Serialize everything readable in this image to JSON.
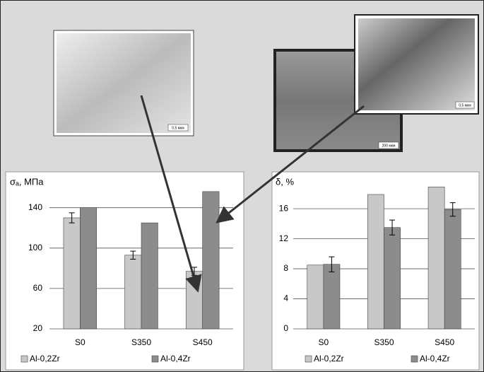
{
  "chart_data": [
    {
      "type": "bar",
      "y_label": "σₐ, МПа",
      "categories": [
        "S0",
        "S350",
        "S450"
      ],
      "series": [
        {
          "name": "Al-0,2Zr",
          "color": "#c8c8c8",
          "values": [
            130,
            93,
            77
          ],
          "errors": [
            5,
            4,
            4
          ]
        },
        {
          "name": "Al-0,4Zr",
          "color": "#8c8c8c",
          "values": [
            140,
            125,
            156
          ]
        }
      ],
      "ylim": [
        20,
        165
      ],
      "yticks": [
        20,
        60,
        100,
        140
      ],
      "grid": true,
      "legend": "bottom"
    },
    {
      "type": "bar",
      "y_label": "δ, %",
      "categories": [
        "S0",
        "S350",
        "S450"
      ],
      "series": [
        {
          "name": "Al-0,2Zr",
          "color": "#c8c8c8",
          "values": [
            8.5,
            17.9,
            18.9
          ]
        },
        {
          "name": "Al-0,4Zr",
          "color": "#8c8c8c",
          "values": [
            8.6,
            13.5,
            15.9
          ],
          "errors": [
            1,
            1,
            0.9
          ]
        }
      ],
      "ylim": [
        0,
        19.5
      ],
      "yticks": [
        0,
        4,
        8,
        12,
        16
      ],
      "grid": true,
      "legend": "bottom"
    }
  ],
  "images": [
    {
      "scale_label": "0,5 мкм"
    },
    {
      "scale_label": "200 мкм"
    },
    {
      "scale_label": "0,5 мкм"
    }
  ]
}
